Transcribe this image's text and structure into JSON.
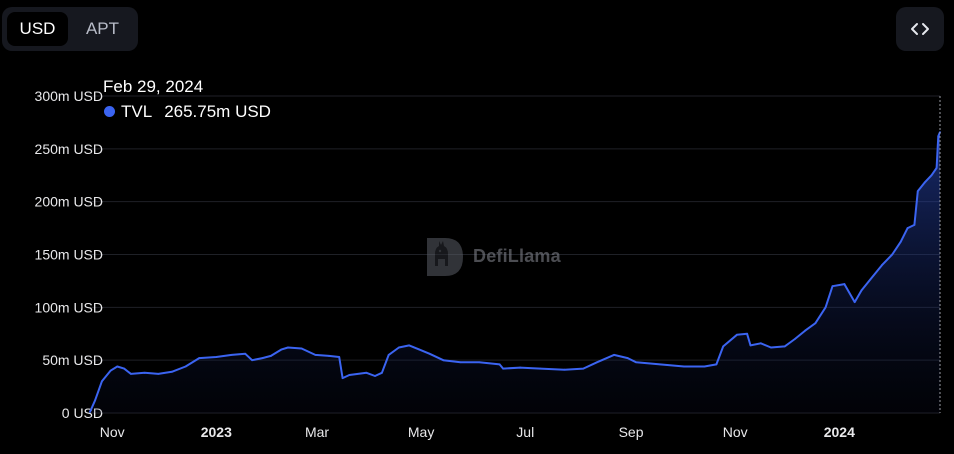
{
  "toolbar": {
    "currency_options": [
      "USD",
      "APT"
    ],
    "selected_currency": "USD",
    "embed_icon": "code-brackets-icon"
  },
  "tooltip": {
    "date": "Feb 29, 2024",
    "series_name": "TVL",
    "value_text": "265.75m USD"
  },
  "watermark": {
    "text": "DefiLlama",
    "icon": "llama-logo-icon"
  },
  "colors": {
    "accent": "#3b64f1",
    "background": "#000000",
    "grid": "#1f2127"
  },
  "chart_data": {
    "type": "area",
    "title": "",
    "xlabel": "",
    "ylabel": "",
    "ylim": [
      0,
      300
    ],
    "y_ticks": [
      {
        "value": 0,
        "label": "0 USD"
      },
      {
        "value": 50,
        "label": "50m USD"
      },
      {
        "value": 100,
        "label": "100m USD"
      },
      {
        "value": 150,
        "label": "150m USD"
      },
      {
        "value": 200,
        "label": "200m USD"
      },
      {
        "value": 250,
        "label": "250m USD"
      },
      {
        "value": 300,
        "label": "300m USD"
      }
    ],
    "xlim": [
      "2022-10-19",
      "2024-02-29"
    ],
    "x_ticks": [
      {
        "date": "2022-11-01",
        "label": "Nov",
        "bold": false
      },
      {
        "date": "2023-01-01",
        "label": "2023",
        "bold": true
      },
      {
        "date": "2023-03-01",
        "label": "Mar",
        "bold": false
      },
      {
        "date": "2023-05-01",
        "label": "May",
        "bold": false
      },
      {
        "date": "2023-07-01",
        "label": "Jul",
        "bold": false
      },
      {
        "date": "2023-09-01",
        "label": "Sep",
        "bold": false
      },
      {
        "date": "2023-11-01",
        "label": "Nov",
        "bold": false
      },
      {
        "date": "2024-01-01",
        "label": "2024",
        "bold": true
      }
    ],
    "grid": true,
    "series": [
      {
        "name": "TVL",
        "unit": "m USD",
        "points": [
          [
            "2022-10-19",
            1
          ],
          [
            "2022-10-22",
            12
          ],
          [
            "2022-10-26",
            30
          ],
          [
            "2022-10-31",
            40
          ],
          [
            "2022-11-04",
            44
          ],
          [
            "2022-11-08",
            42
          ],
          [
            "2022-11-12",
            37
          ],
          [
            "2022-11-20",
            38
          ],
          [
            "2022-11-28",
            37
          ],
          [
            "2022-12-06",
            39
          ],
          [
            "2022-12-14",
            44
          ],
          [
            "2022-12-22",
            52
          ],
          [
            "2023-01-01",
            53
          ],
          [
            "2023-01-10",
            55
          ],
          [
            "2023-01-18",
            56
          ],
          [
            "2023-01-22",
            50
          ],
          [
            "2023-01-28",
            52
          ],
          [
            "2023-02-02",
            54
          ],
          [
            "2023-02-08",
            60
          ],
          [
            "2023-02-12",
            62
          ],
          [
            "2023-02-20",
            61
          ],
          [
            "2023-02-28",
            55
          ],
          [
            "2023-03-08",
            54
          ],
          [
            "2023-03-14",
            53
          ],
          [
            "2023-03-16",
            33
          ],
          [
            "2023-03-20",
            36
          ],
          [
            "2023-03-30",
            38
          ],
          [
            "2023-04-04",
            35
          ],
          [
            "2023-04-08",
            38
          ],
          [
            "2023-04-12",
            55
          ],
          [
            "2023-04-18",
            62
          ],
          [
            "2023-04-24",
            64
          ],
          [
            "2023-04-30",
            60
          ],
          [
            "2023-05-06",
            56
          ],
          [
            "2023-05-14",
            50
          ],
          [
            "2023-05-24",
            48
          ],
          [
            "2023-06-04",
            48
          ],
          [
            "2023-06-16",
            46
          ],
          [
            "2023-06-18",
            42
          ],
          [
            "2023-06-28",
            43
          ],
          [
            "2023-07-10",
            42
          ],
          [
            "2023-07-24",
            41
          ],
          [
            "2023-08-04",
            42
          ],
          [
            "2023-08-12",
            48
          ],
          [
            "2023-08-22",
            55
          ],
          [
            "2023-08-30",
            52
          ],
          [
            "2023-09-04",
            48
          ],
          [
            "2023-09-18",
            46
          ],
          [
            "2023-10-02",
            44
          ],
          [
            "2023-10-14",
            44
          ],
          [
            "2023-10-21",
            46
          ],
          [
            "2023-10-25",
            63
          ],
          [
            "2023-11-02",
            74
          ],
          [
            "2023-11-08",
            75
          ],
          [
            "2023-11-10",
            64
          ],
          [
            "2023-11-16",
            66
          ],
          [
            "2023-11-22",
            62
          ],
          [
            "2023-11-30",
            63
          ],
          [
            "2023-12-06",
            70
          ],
          [
            "2023-12-12",
            78
          ],
          [
            "2023-12-18",
            85
          ],
          [
            "2023-12-24",
            100
          ],
          [
            "2023-12-28",
            120
          ],
          [
            "2024-01-04",
            122
          ],
          [
            "2024-01-10",
            105
          ],
          [
            "2024-01-14",
            116
          ],
          [
            "2024-01-20",
            128
          ],
          [
            "2024-01-26",
            140
          ],
          [
            "2024-02-01",
            150
          ],
          [
            "2024-02-06",
            162
          ],
          [
            "2024-02-10",
            175
          ],
          [
            "2024-02-14",
            178
          ],
          [
            "2024-02-16",
            210
          ],
          [
            "2024-02-20",
            218
          ],
          [
            "2024-02-24",
            225
          ],
          [
            "2024-02-27",
            232
          ],
          [
            "2024-02-28",
            262
          ],
          [
            "2024-02-29",
            265.75
          ]
        ]
      }
    ]
  }
}
